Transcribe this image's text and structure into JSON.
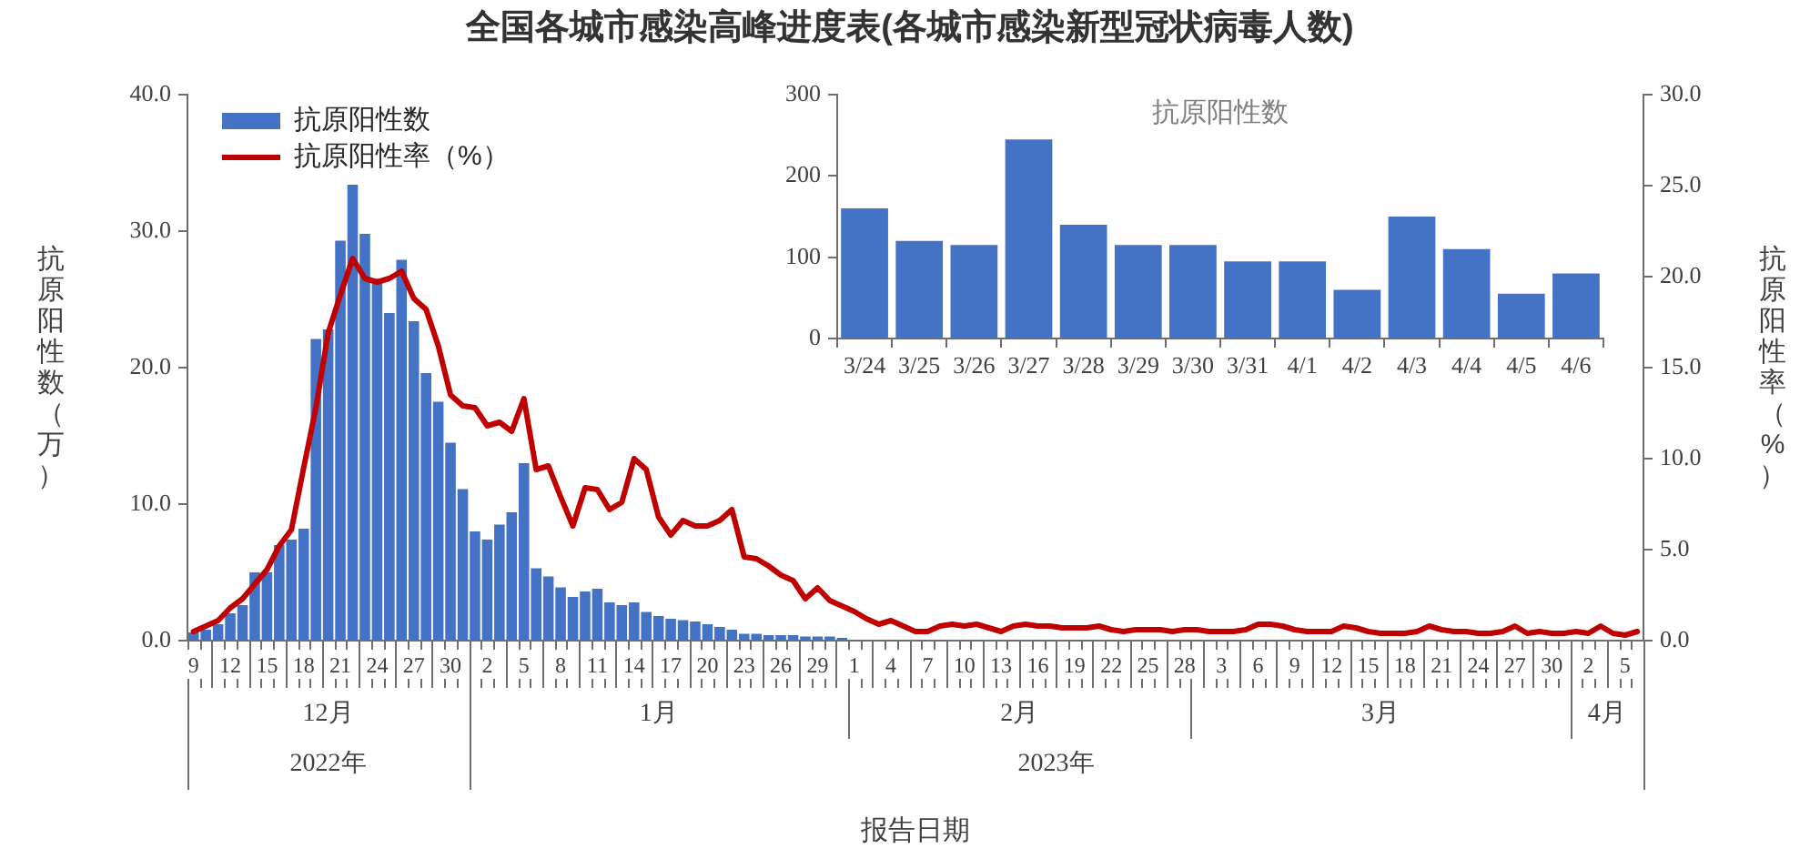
{
  "chart_data": [
    {
      "type": "bar",
      "title": "全国各城市感染高峰进度表(各城市感染新型冠状病毒人数)",
      "xlabel": "报告日期",
      "ylabel": "抗原阳性数（万）",
      "y2label": "抗原阳性率（%）",
      "x": [
        "2022-12-09",
        "2022-12-10",
        "2022-12-11",
        "2022-12-12",
        "2022-12-13",
        "2022-12-14",
        "2022-12-15",
        "2022-12-16",
        "2022-12-17",
        "2022-12-18",
        "2022-12-19",
        "2022-12-20",
        "2022-12-21",
        "2022-12-22",
        "2022-12-23",
        "2022-12-24",
        "2022-12-25",
        "2022-12-26",
        "2022-12-27",
        "2022-12-28",
        "2022-12-29",
        "2022-12-30",
        "2022-12-31",
        "2023-01-01",
        "2023-01-02",
        "2023-01-03",
        "2023-01-04",
        "2023-01-05",
        "2023-01-06",
        "2023-01-07",
        "2023-01-08",
        "2023-01-09",
        "2023-01-10",
        "2023-01-11",
        "2023-01-12",
        "2023-01-13",
        "2023-01-14",
        "2023-01-15",
        "2023-01-16",
        "2023-01-17",
        "2023-01-18",
        "2023-01-19",
        "2023-01-20",
        "2023-01-21",
        "2023-01-22",
        "2023-01-23",
        "2023-01-24",
        "2023-01-25",
        "2023-01-26",
        "2023-01-27",
        "2023-01-28",
        "2023-01-29",
        "2023-01-30",
        "2023-01-31",
        "2023-02-01",
        "2023-02-02",
        "2023-02-03",
        "2023-02-04",
        "2023-02-05",
        "2023-02-06",
        "2023-02-07",
        "2023-02-08",
        "2023-02-09",
        "2023-02-10",
        "2023-02-11",
        "2023-02-12",
        "2023-02-13",
        "2023-02-14",
        "2023-02-15",
        "2023-02-16",
        "2023-02-17",
        "2023-02-18",
        "2023-02-19",
        "2023-02-20",
        "2023-02-21",
        "2023-02-22",
        "2023-02-23",
        "2023-02-24",
        "2023-02-25",
        "2023-02-26",
        "2023-02-27",
        "2023-02-28",
        "2023-03-01",
        "2023-03-02",
        "2023-03-03",
        "2023-03-04",
        "2023-03-05",
        "2023-03-06",
        "2023-03-07",
        "2023-03-08",
        "2023-03-09",
        "2023-03-10",
        "2023-03-11",
        "2023-03-12",
        "2023-03-13",
        "2023-03-14",
        "2023-03-15",
        "2023-03-16",
        "2023-03-17",
        "2023-03-18",
        "2023-03-19",
        "2023-03-20",
        "2023-03-21",
        "2023-03-22",
        "2023-03-23",
        "2023-03-24",
        "2023-03-25",
        "2023-03-26",
        "2023-03-27",
        "2023-03-28",
        "2023-03-29",
        "2023-03-30",
        "2023-03-31",
        "2023-04-01",
        "2023-04-02",
        "2023-04-03",
        "2023-04-04",
        "2023-04-05",
        "2023-04-06"
      ],
      "xlim": [
        "2022-12-08T12:00",
        "2023-04-06T12:00"
      ],
      "xticks": [
        {
          "value": "2022-12-09",
          "label": "9"
        },
        {
          "value": "2022-12-12",
          "label": "12"
        },
        {
          "value": "2022-12-15",
          "label": "15"
        },
        {
          "value": "2022-12-18",
          "label": "18"
        },
        {
          "value": "2022-12-21",
          "label": "21"
        },
        {
          "value": "2022-12-24",
          "label": "24"
        },
        {
          "value": "2022-12-27",
          "label": "27"
        },
        {
          "value": "2022-12-30",
          "label": "30"
        },
        {
          "value": "2023-01-02",
          "label": "2"
        },
        {
          "value": "2023-01-05",
          "label": "5"
        },
        {
          "value": "2023-01-08",
          "label": "8"
        },
        {
          "value": "2023-01-11",
          "label": "11"
        },
        {
          "value": "2023-01-14",
          "label": "14"
        },
        {
          "value": "2023-01-17",
          "label": "17"
        },
        {
          "value": "2023-01-20",
          "label": "20"
        },
        {
          "value": "2023-01-23",
          "label": "23"
        },
        {
          "value": "2023-01-26",
          "label": "26"
        },
        {
          "value": "2023-01-29",
          "label": "29"
        },
        {
          "value": "2023-02-01",
          "label": "1"
        },
        {
          "value": "2023-02-04",
          "label": "4"
        },
        {
          "value": "2023-02-07",
          "label": "7"
        },
        {
          "value": "2023-02-10",
          "label": "10"
        },
        {
          "value": "2023-02-13",
          "label": "13"
        },
        {
          "value": "2023-02-16",
          "label": "16"
        },
        {
          "value": "2023-02-19",
          "label": "19"
        },
        {
          "value": "2023-02-22",
          "label": "22"
        },
        {
          "value": "2023-02-25",
          "label": "25"
        },
        {
          "value": "2023-02-28",
          "label": "28"
        },
        {
          "value": "2023-03-03",
          "label": "3"
        },
        {
          "value": "2023-03-06",
          "label": "6"
        },
        {
          "value": "2023-03-09",
          "label": "9"
        },
        {
          "value": "2023-03-12",
          "label": "12"
        },
        {
          "value": "2023-03-15",
          "label": "15"
        },
        {
          "value": "2023-03-18",
          "label": "18"
        },
        {
          "value": "2023-03-21",
          "label": "21"
        },
        {
          "value": "2023-03-24",
          "label": "24"
        },
        {
          "value": "2023-03-27",
          "label": "27"
        },
        {
          "value": "2023-03-30",
          "label": "30"
        },
        {
          "value": "2023-04-02",
          "label": "2"
        },
        {
          "value": "2023-04-05",
          "label": "5"
        }
      ],
      "x2lim": [
        "2022-12-08T12:00",
        "2023-04-06T12:00"
      ],
      "x2ticks": [
        {
          "value": "2022-12-20",
          "label": "12月"
        },
        {
          "value": "2023-01-16",
          "label": "1月"
        },
        {
          "value": "2023-02-14T12:00",
          "label": "2月"
        },
        {
          "value": "2023-03-16",
          "label": "3月"
        },
        {
          "value": "2023-04-03T12:00",
          "label": "4月"
        }
      ],
      "annotations": [
        "2022年",
        "2023年"
      ],
      "ylim": [
        0,
        40
      ],
      "yticks": [
        {
          "value": 0,
          "label": "0.0"
        },
        {
          "value": 10,
          "label": "10.0"
        },
        {
          "value": 20,
          "label": "20.0"
        },
        {
          "value": 30,
          "label": "30.0"
        },
        {
          "value": 40,
          "label": "40.0"
        }
      ],
      "y2lim": [
        0,
        30
      ],
      "y2ticks": [
        {
          "value": 0,
          "label": "0.0"
        },
        {
          "value": 5,
          "label": "5.0"
        },
        {
          "value": 10,
          "label": "10.0"
        },
        {
          "value": 15,
          "label": "15.0"
        },
        {
          "value": 20,
          "label": "20.0"
        },
        {
          "value": 25,
          "label": "25.0"
        },
        {
          "value": 30,
          "label": "30.0"
        }
      ],
      "legend": "top left",
      "series": [
        {
          "name": "抗原阳性数",
          "type": "bar",
          "color": "#4472c4",
          "values": [
            0.6,
            0.8,
            1.2,
            2.0,
            2.6,
            5.0,
            5.0,
            7.0,
            7.4,
            8.2,
            22.1,
            22.8,
            29.3,
            33.4,
            29.8,
            26.5,
            24.0,
            27.9,
            23.4,
            19.6,
            17.5,
            14.5,
            11.1,
            8.0,
            7.4,
            8.5,
            9.4,
            13.0,
            5.3,
            4.7,
            3.9,
            3.2,
            3.6,
            3.8,
            2.8,
            2.6,
            2.8,
            2.1,
            1.8,
            1.6,
            1.5,
            1.4,
            1.2,
            1.0,
            0.8,
            0.5,
            0.5,
            0.4,
            0.4,
            0.4,
            0.3,
            0.3,
            0.3,
            0.2,
            null,
            null,
            null,
            null,
            null,
            null,
            null,
            null,
            null,
            null,
            null,
            null,
            null,
            null,
            null,
            null,
            null,
            null,
            null,
            null,
            null,
            null,
            null,
            null,
            null,
            null,
            null,
            null,
            null,
            null,
            null,
            null,
            null,
            null,
            null,
            null,
            null,
            null,
            null,
            null,
            null,
            null,
            null,
            null,
            null,
            null,
            null,
            null,
            null,
            null,
            null,
            null,
            null,
            null,
            null,
            null,
            null,
            null,
            null,
            null,
            null,
            null,
            null,
            null,
            null
          ]
        },
        {
          "name": "抗原阳性率（%）",
          "type": "line",
          "axis": "y2",
          "color": "#c00000",
          "values": [
            0.5,
            0.8,
            1.1,
            1.8,
            2.3,
            3.1,
            3.9,
            5.2,
            6.1,
            9.5,
            12.8,
            16.9,
            19.0,
            21.0,
            19.9,
            19.7,
            19.9,
            20.3,
            18.8,
            18.2,
            16.2,
            13.5,
            12.9,
            12.8,
            11.8,
            12.0,
            11.5,
            13.3,
            9.4,
            9.6,
            7.9,
            6.3,
            8.4,
            8.3,
            7.2,
            7.6,
            10.0,
            9.4,
            6.8,
            5.8,
            6.6,
            6.3,
            6.3,
            6.6,
            7.2,
            4.6,
            4.5,
            4.1,
            3.6,
            3.3,
            2.3,
            2.9,
            2.2,
            1.9,
            1.6,
            1.2,
            0.9,
            1.1,
            0.8,
            0.5,
            0.5,
            0.8,
            0.9,
            0.8,
            0.9,
            0.7,
            0.5,
            0.8,
            0.9,
            0.8,
            0.8,
            0.7,
            0.7,
            0.7,
            0.8,
            0.6,
            0.5,
            0.6,
            0.6,
            0.6,
            0.5,
            0.6,
            0.6,
            0.5,
            0.5,
            0.5,
            0.6,
            0.9,
            0.9,
            0.8,
            0.6,
            0.5,
            0.5,
            0.5,
            0.8,
            0.7,
            0.5,
            0.4,
            0.4,
            0.4,
            0.5,
            0.8,
            0.6,
            0.5,
            0.5,
            0.4,
            0.4,
            0.5,
            0.8,
            0.4,
            0.5,
            0.4,
            0.4,
            0.5,
            0.4,
            0.8,
            0.4,
            0.3,
            0.5
          ]
        }
      ]
    },
    {
      "type": "bar",
      "title": "抗原阳性数",
      "categories": [
        "3/24",
        "3/25",
        "3/26",
        "3/27",
        "3/28",
        "3/29",
        "3/30",
        "3/31",
        "4/1",
        "4/2",
        "4/3",
        "4/4",
        "4/5",
        "4/6"
      ],
      "values": [
        160,
        120,
        115,
        245,
        140,
        115,
        115,
        95,
        95,
        60,
        150,
        110,
        55,
        80
      ],
      "color": "#4472c4",
      "ylim": [
        0,
        300
      ],
      "yticks": [
        0,
        100,
        200,
        300
      ]
    }
  ]
}
